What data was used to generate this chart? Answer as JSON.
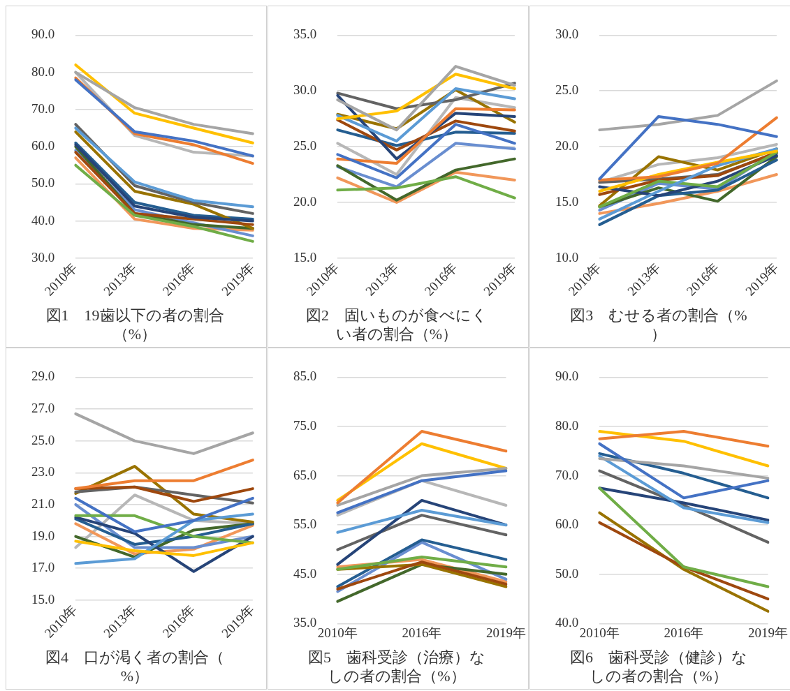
{
  "chart_data": [
    {
      "type": "line",
      "title": "図1　19歯以下の者の割合（%）",
      "categories": [
        "2010年",
        "2013年",
        "2016年",
        "2019年"
      ],
      "ylim": [
        30,
        90
      ],
      "yticks": [
        {
          "value": 30,
          "label": "30.0"
        },
        {
          "value": 40,
          "label": "40.0"
        },
        {
          "value": 50,
          "label": "50.0"
        },
        {
          "value": 60,
          "label": "60.0"
        },
        {
          "value": 70,
          "label": "70.0"
        },
        {
          "value": 80,
          "label": "80.0"
        },
        {
          "value": 90,
          "label": "90.0"
        }
      ],
      "grid": "y",
      "series": [
        {
          "color": "#4472c4",
          "values": [
            78,
            64,
            61.5,
            57.5
          ]
        },
        {
          "color": "#ed7d31",
          "values": [
            78.5,
            63.5,
            60.5,
            55.5
          ]
        },
        {
          "color": "#a5a5a5",
          "values": [
            80,
            70.5,
            66,
            63.5
          ]
        },
        {
          "color": "#ffc000",
          "values": [
            82,
            69,
            65,
            61
          ]
        },
        {
          "color": "#5b9bd5",
          "values": [
            65,
            50.5,
            45.5,
            43.8
          ]
        },
        {
          "color": "#70ad47",
          "values": [
            55,
            41.5,
            38.5,
            34.5
          ]
        },
        {
          "color": "#264478",
          "values": [
            60.5,
            44,
            41,
            40
          ]
        },
        {
          "color": "#9e480e",
          "values": [
            58.5,
            42,
            40.5,
            39
          ]
        },
        {
          "color": "#636363",
          "values": [
            66,
            49.5,
            45,
            42
          ]
        },
        {
          "color": "#997300",
          "values": [
            64,
            48,
            44.5,
            38
          ]
        },
        {
          "color": "#255e91",
          "values": [
            61,
            45,
            41.5,
            40.5
          ]
        },
        {
          "color": "#43682b",
          "values": [
            60,
            42,
            39,
            38
          ]
        },
        {
          "color": "#698ed0",
          "values": [
            59,
            43,
            39.5,
            36
          ]
        },
        {
          "color": "#f1975a",
          "values": [
            57,
            40.5,
            38,
            37.5
          ]
        },
        {
          "color": "#b7b7b7",
          "values": [
            80,
            63,
            58.5,
            57.5
          ]
        }
      ]
    },
    {
      "type": "line",
      "title": "図2　固いものが食べにくい者の割合（%）",
      "categories": [
        "2010年",
        "2013年",
        "2016年",
        "2019年"
      ],
      "ylim": [
        15,
        35
      ],
      "yticks": [
        {
          "value": 15,
          "label": "15.0"
        },
        {
          "value": 20,
          "label": "20.0"
        },
        {
          "value": 25,
          "label": "25.0"
        },
        {
          "value": 30,
          "label": "30.0"
        },
        {
          "value": 35,
          "label": "35.0"
        }
      ],
      "grid": "y",
      "series": [
        {
          "color": "#4472c4",
          "values": [
            24.3,
            22.2,
            27,
            25.3
          ]
        },
        {
          "color": "#ed7d31",
          "values": [
            23.9,
            23.5,
            28.4,
            28.3
          ]
        },
        {
          "color": "#a5a5a5",
          "values": [
            29.2,
            26.5,
            32.2,
            30.5
          ]
        },
        {
          "color": "#ffc000",
          "values": [
            27.5,
            28.2,
            31.5,
            30.2
          ]
        },
        {
          "color": "#5b9bd5",
          "values": [
            27.8,
            25.5,
            30.2,
            29.3
          ]
        },
        {
          "color": "#70ad47",
          "values": [
            21.1,
            21.3,
            22.3,
            20.4
          ]
        },
        {
          "color": "#264478",
          "values": [
            29.6,
            23.9,
            28,
            27.7
          ]
        },
        {
          "color": "#9e480e",
          "values": [
            27.4,
            24.7,
            27.3,
            26.4
          ]
        },
        {
          "color": "#636363",
          "values": [
            29.8,
            28.4,
            29.2,
            30.7
          ]
        },
        {
          "color": "#997300",
          "values": [
            27.9,
            26.6,
            30.1,
            27.2
          ]
        },
        {
          "color": "#255e91",
          "values": [
            26.5,
            25.1,
            26.3,
            26.2
          ]
        },
        {
          "color": "#43682b",
          "values": [
            23.3,
            20.2,
            22.9,
            23.9
          ]
        },
        {
          "color": "#698ed0",
          "values": [
            23.2,
            21.4,
            25.3,
            24.8
          ]
        },
        {
          "color": "#f1975a",
          "values": [
            22.2,
            20,
            22.7,
            22
          ]
        },
        {
          "color": "#b7b7b7",
          "values": [
            25.3,
            22.5,
            29.4,
            28.5
          ]
        }
      ]
    },
    {
      "type": "line",
      "title": "図3　むせる者の割合（%）",
      "categories": [
        "2010年",
        "2013年",
        "2016年",
        "2019年"
      ],
      "ylim": [
        10,
        30
      ],
      "yticks": [
        {
          "value": 10,
          "label": "10.0"
        },
        {
          "value": 15,
          "label": "15.0"
        },
        {
          "value": 20,
          "label": "20.0"
        },
        {
          "value": 25,
          "label": "25.0"
        },
        {
          "value": 30,
          "label": "30.0"
        }
      ],
      "grid": "y",
      "series": [
        {
          "color": "#4472c4",
          "values": [
            17.1,
            22.7,
            22,
            20.9
          ]
        },
        {
          "color": "#ed7d31",
          "values": [
            17,
            17.3,
            18.5,
            22.6
          ]
        },
        {
          "color": "#a5a5a5",
          "values": [
            21.5,
            22,
            22.8,
            25.9
          ]
        },
        {
          "color": "#ffc000",
          "values": [
            16,
            17.5,
            18.6,
            19.6
          ]
        },
        {
          "color": "#5b9bd5",
          "values": [
            13.5,
            16,
            18.3,
            19.8
          ]
        },
        {
          "color": "#70ad47",
          "values": [
            14.6,
            16.9,
            16.4,
            19.5
          ]
        },
        {
          "color": "#264478",
          "values": [
            16.4,
            15.6,
            16.9,
            19.2
          ]
        },
        {
          "color": "#9e480e",
          "values": [
            15.7,
            17,
            17.4,
            19.5
          ]
        },
        {
          "color": "#636363",
          "values": [
            16.8,
            17.1,
            17.5,
            19.4
          ]
        },
        {
          "color": "#997300",
          "values": [
            14.7,
            19.1,
            17.9,
            19.8
          ]
        },
        {
          "color": "#255e91",
          "values": [
            13,
            15.6,
            16.1,
            18.8
          ]
        },
        {
          "color": "#43682b",
          "values": [
            14.6,
            16.3,
            15.1,
            19.1
          ]
        },
        {
          "color": "#698ed0",
          "values": [
            14.3,
            16.7,
            16.2,
            19.6
          ]
        },
        {
          "color": "#f1975a",
          "values": [
            14,
            14.9,
            16,
            17.5
          ]
        },
        {
          "color": "#b7b7b7",
          "values": [
            16.8,
            18.4,
            19,
            20.2
          ]
        }
      ]
    },
    {
      "type": "line",
      "title": "図4　口が渇く者の割合（%）",
      "categories": [
        "2010年",
        "2013年",
        "2016年",
        "2019年"
      ],
      "ylim": [
        15,
        29
      ],
      "yticks": [
        {
          "value": 15,
          "label": "15.0"
        },
        {
          "value": 17,
          "label": "17.0"
        },
        {
          "value": 19,
          "label": "19.0"
        },
        {
          "value": 21,
          "label": "21.0"
        },
        {
          "value": 23,
          "label": "23.0"
        },
        {
          "value": 25,
          "label": "25.0"
        },
        {
          "value": 27,
          "label": "27.0"
        },
        {
          "value": 29,
          "label": "29.0"
        }
      ],
      "grid": "y",
      "series": [
        {
          "color": "#4472c4",
          "values": [
            21.4,
            19.3,
            20,
            21.4
          ]
        },
        {
          "color": "#ed7d31",
          "values": [
            22,
            22.5,
            22.5,
            23.8
          ]
        },
        {
          "color": "#a5a5a5",
          "values": [
            26.7,
            25,
            24.2,
            25.5
          ]
        },
        {
          "color": "#ffc000",
          "values": [
            18.7,
            18.1,
            17.8,
            18.6
          ]
        },
        {
          "color": "#5b9bd5",
          "values": [
            17.3,
            17.6,
            20,
            20.4
          ]
        },
        {
          "color": "#70ad47",
          "values": [
            20.3,
            20.3,
            19,
            18.6
          ]
        },
        {
          "color": "#264478",
          "values": [
            20.2,
            19.2,
            16.8,
            19
          ]
        },
        {
          "color": "#9e480e",
          "values": [
            22,
            22.1,
            21.2,
            22
          ]
        },
        {
          "color": "#636363",
          "values": [
            21.8,
            22.1,
            21.6,
            21.1
          ]
        },
        {
          "color": "#997300",
          "values": [
            21.7,
            23.4,
            20.4,
            19.9
          ]
        },
        {
          "color": "#255e91",
          "values": [
            20.1,
            18.5,
            19,
            19.8
          ]
        },
        {
          "color": "#43682b",
          "values": [
            19,
            17.7,
            19.4,
            19.8
          ]
        },
        {
          "color": "#698ed0",
          "values": [
            21,
            18.3,
            18.3,
            19
          ]
        },
        {
          "color": "#f1975a",
          "values": [
            19.8,
            17.9,
            18.2,
            19.7
          ]
        },
        {
          "color": "#b7b7b7",
          "values": [
            18.3,
            21.6,
            20,
            19.8
          ]
        }
      ]
    },
    {
      "type": "line",
      "title": "図5　歯科受診（治療）なしの者の割合（%）",
      "categories": [
        "2010年",
        "2016年",
        "2019年"
      ],
      "ylim": [
        35,
        85
      ],
      "yticks": [
        {
          "value": 35,
          "label": "35.0"
        },
        {
          "value": 45,
          "label": "45.0"
        },
        {
          "value": 55,
          "label": "55.0"
        },
        {
          "value": 65,
          "label": "65.0"
        },
        {
          "value": 75,
          "label": "75.0"
        },
        {
          "value": 85,
          "label": "85.0"
        }
      ],
      "grid": "y",
      "series": [
        {
          "color": "#4472c4",
          "values": [
            57.5,
            64,
            66
          ]
        },
        {
          "color": "#ed7d31",
          "values": [
            59.5,
            74,
            70
          ]
        },
        {
          "color": "#a5a5a5",
          "values": [
            59,
            65,
            66.5
          ]
        },
        {
          "color": "#ffc000",
          "values": [
            60,
            71.5,
            66.5
          ]
        },
        {
          "color": "#5b9bd5",
          "values": [
            53.5,
            58,
            55
          ]
        },
        {
          "color": "#70ad47",
          "values": [
            46,
            48.5,
            46.5
          ]
        },
        {
          "color": "#264478",
          "values": [
            47,
            60,
            55
          ]
        },
        {
          "color": "#9e480e",
          "values": [
            42,
            47.5,
            43
          ]
        },
        {
          "color": "#636363",
          "values": [
            50,
            57,
            53
          ]
        },
        {
          "color": "#997300",
          "values": [
            46,
            47,
            42.5
          ]
        },
        {
          "color": "#255e91",
          "values": [
            42.5,
            52,
            48
          ]
        },
        {
          "color": "#43682b",
          "values": [
            39.5,
            47,
            45
          ]
        },
        {
          "color": "#698ed0",
          "values": [
            41.5,
            51.5,
            44
          ]
        },
        {
          "color": "#f1975a",
          "values": [
            46.5,
            48,
            43.5
          ]
        },
        {
          "color": "#b7b7b7",
          "values": [
            57,
            64,
            59
          ]
        }
      ]
    },
    {
      "type": "line",
      "title": "図6　歯科受診（健診）なしの者の割合（%）",
      "categories": [
        "2010年",
        "2016年",
        "2019年"
      ],
      "ylim": [
        40,
        90
      ],
      "yticks": [
        {
          "value": 40,
          "label": "40.0"
        },
        {
          "value": 50,
          "label": "50.0"
        },
        {
          "value": 60,
          "label": "60.0"
        },
        {
          "value": 70,
          "label": "70.0"
        },
        {
          "value": 80,
          "label": "80.0"
        },
        {
          "value": 90,
          "label": "90.0"
        }
      ],
      "grid": "y",
      "series": [
        {
          "color": "#4472c4",
          "values": [
            76.5,
            65.5,
            69
          ]
        },
        {
          "color": "#ed7d31",
          "values": [
            77.5,
            79,
            76
          ]
        },
        {
          "color": "#a5a5a5",
          "values": [
            73.5,
            72,
            69.5
          ]
        },
        {
          "color": "#ffc000",
          "values": [
            79,
            77,
            72
          ]
        },
        {
          "color": "#5b9bd5",
          "values": [
            74,
            63.5,
            60.5
          ]
        },
        {
          "color": "#70ad47",
          "values": [
            67.5,
            51.5,
            47.5
          ]
        },
        {
          "color": "#264478",
          "values": [
            67.5,
            64.5,
            61
          ]
        },
        {
          "color": "#9e480e",
          "values": [
            60.5,
            51.5,
            45
          ]
        },
        {
          "color": "#636363",
          "values": [
            71,
            64,
            56.5
          ]
        },
        {
          "color": "#997300",
          "values": [
            62.5,
            51,
            42.5
          ]
        },
        {
          "color": "#255e91",
          "values": [
            74.5,
            70.5,
            65.5
          ]
        }
      ]
    }
  ]
}
